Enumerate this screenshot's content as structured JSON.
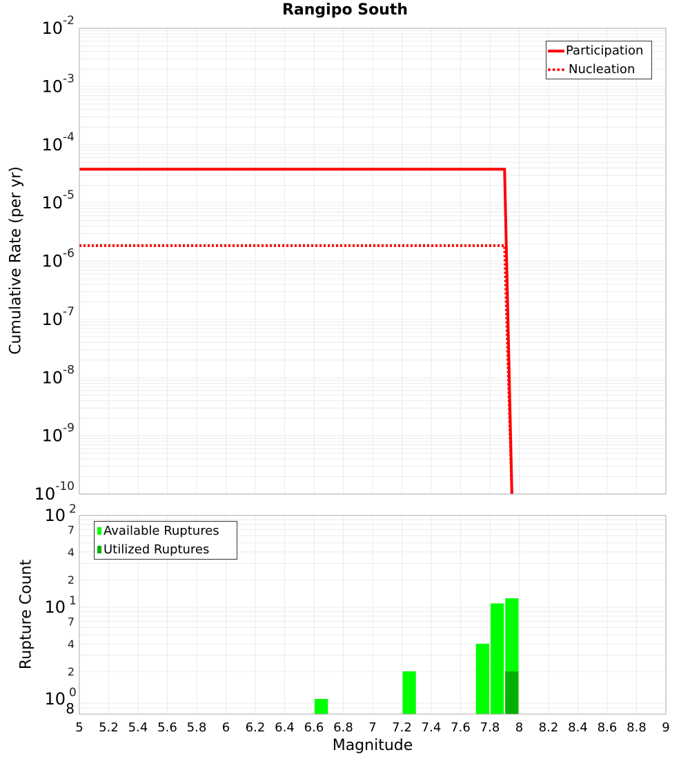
{
  "title": "Rangipo South",
  "colors": {
    "participation": "#ff0000",
    "nucleation": "#ff0000",
    "available": "#00ff00",
    "utilized": "#00b000",
    "grid": "#ebebeb",
    "axis": "#aaaaaa"
  },
  "top_legend": {
    "items": [
      {
        "label": "Participation",
        "style": "solid"
      },
      {
        "label": "Nucleation",
        "style": "dotted"
      }
    ]
  },
  "bottom_legend": {
    "items": [
      {
        "label": "Available Ruptures"
      },
      {
        "label": "Utilized Ruptures"
      }
    ]
  },
  "chart_data": [
    {
      "type": "line",
      "title": "Rangipo South",
      "xlabel": "Magnitude",
      "ylabel": "Cumulative Rate (per yr)",
      "xlim": [
        5,
        9
      ],
      "ylim": [
        1e-10,
        0.01
      ],
      "yscale": "log",
      "grid": true,
      "legend_position": "top-right",
      "x_ticks": [
        "5",
        "5.2",
        "5.4",
        "5.6",
        "5.8",
        "6",
        "6.2",
        "6.4",
        "6.6",
        "6.8",
        "7",
        "7.2",
        "7.4",
        "7.6",
        "7.8",
        "8",
        "8.2",
        "8.4",
        "8.6",
        "8.8",
        "9"
      ],
      "y_ticks": [
        "10^-2",
        "10^-3",
        "10^-4",
        "10^-5",
        "10^-6",
        "10^-7",
        "10^-8",
        "10^-9",
        "10^-10"
      ],
      "series": [
        {
          "name": "Participation",
          "style": "solid",
          "x": [
            5.0,
            7.9,
            7.95
          ],
          "y": [
            3.8e-05,
            3.8e-05,
            1e-10
          ]
        },
        {
          "name": "Nucleation",
          "style": "dotted",
          "x": [
            5.0,
            7.9,
            7.95
          ],
          "y": [
            1.85e-06,
            1.85e-06,
            1e-10
          ]
        }
      ]
    },
    {
      "type": "bar",
      "xlabel": "Magnitude",
      "ylabel": "Rupture Count",
      "xlim": [
        5,
        9
      ],
      "ylim": [
        0.8,
        100
      ],
      "yscale": "log",
      "grid": true,
      "legend_position": "top-left",
      "y_ticks": [
        "10^2",
        "7",
        "4",
        "2",
        "10^1",
        "7",
        "4",
        "2",
        "10^0",
        "8"
      ],
      "categories": [
        6.65,
        7.25,
        7.75,
        7.85,
        7.95
      ],
      "series": [
        {
          "name": "Available Ruptures",
          "values": [
            1,
            2,
            4,
            11,
            12.5
          ]
        },
        {
          "name": "Utilized Ruptures",
          "values": [
            0,
            0,
            0,
            0,
            2
          ]
        }
      ]
    }
  ],
  "top_y_ticks": [
    {
      "base": "10",
      "exp": "-2"
    },
    {
      "base": "10",
      "exp": "-3"
    },
    {
      "base": "10",
      "exp": "-4"
    },
    {
      "base": "10",
      "exp": "-5"
    },
    {
      "base": "10",
      "exp": "-6"
    },
    {
      "base": "10",
      "exp": "-7"
    },
    {
      "base": "10",
      "exp": "-8"
    },
    {
      "base": "10",
      "exp": "-9"
    },
    {
      "base": "10",
      "exp": "-10"
    }
  ],
  "x_ticks": [
    "5",
    "5.2",
    "5.4",
    "5.6",
    "5.8",
    "6",
    "6.2",
    "6.4",
    "6.6",
    "6.8",
    "7",
    "7.2",
    "7.4",
    "7.6",
    "7.8",
    "8",
    "8.2",
    "8.4",
    "8.6",
    "8.8",
    "9"
  ],
  "top_ylabel": "Cumulative Rate (per yr)",
  "bottom_ylabel": "Rupture Count",
  "xlabel": "Magnitude"
}
